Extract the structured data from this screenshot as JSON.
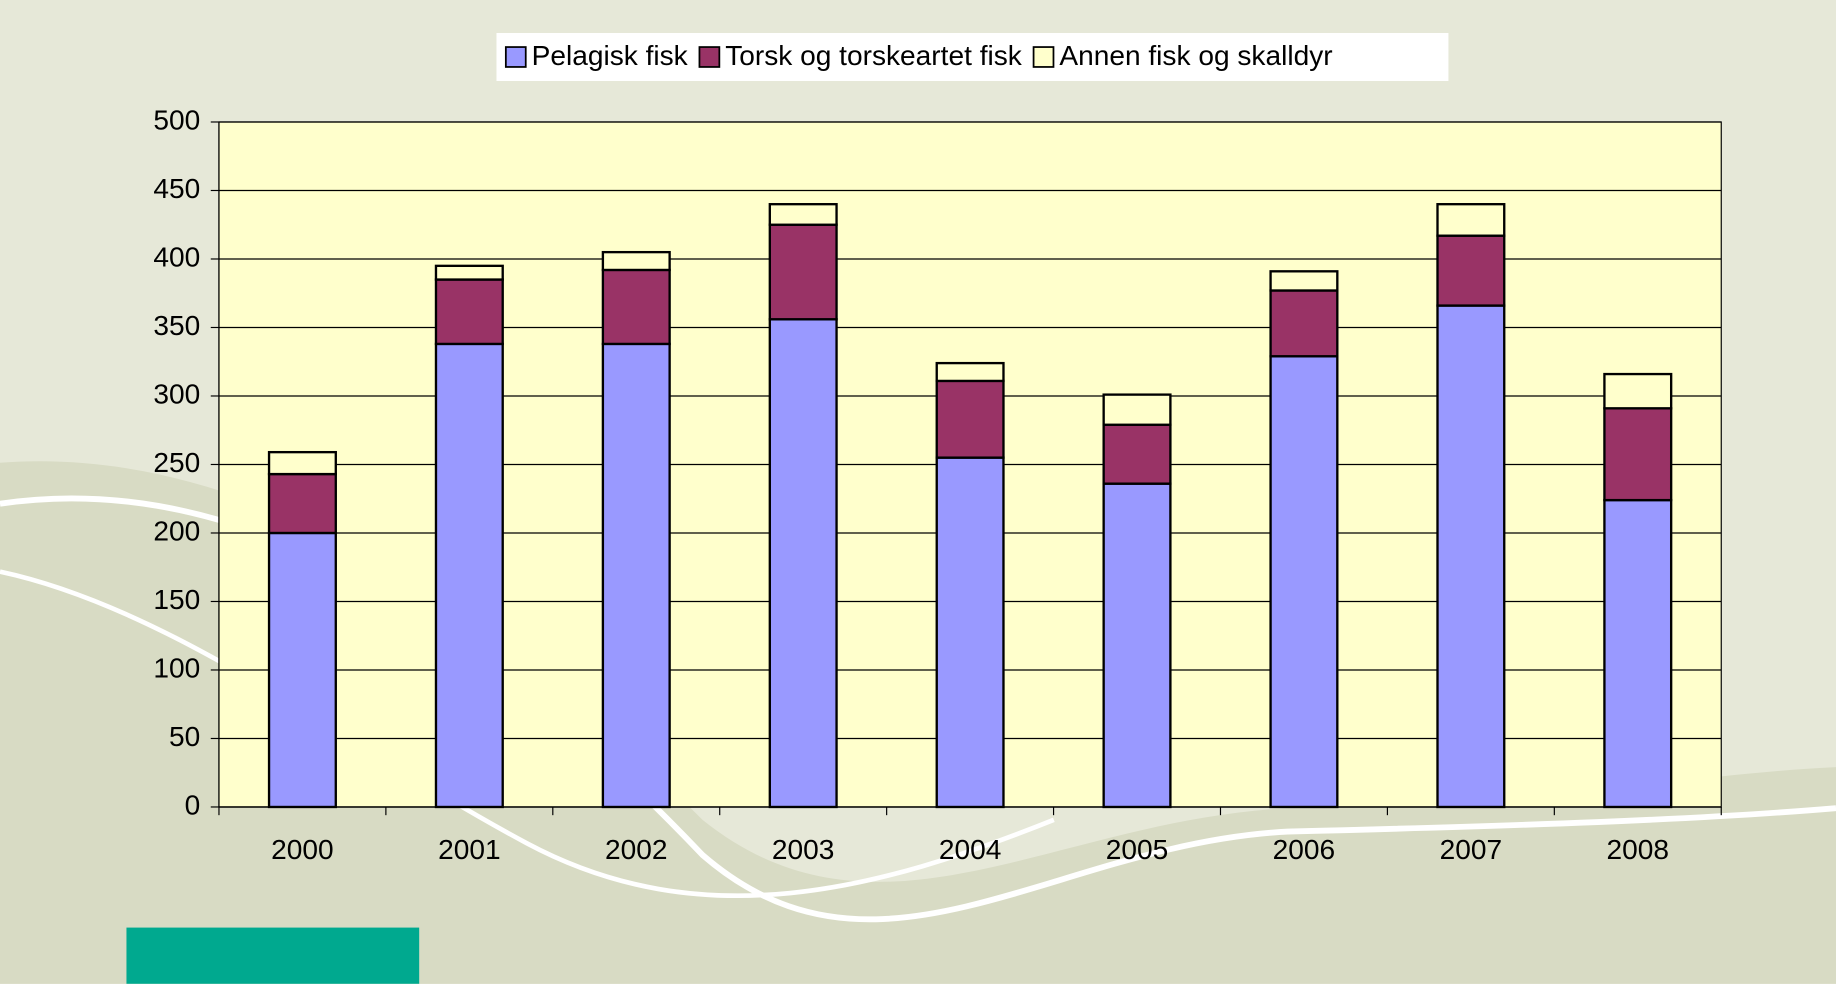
{
  "chart_data": {
    "type": "stacked_bar",
    "categories": [
      "2000",
      "2001",
      "2002",
      "2003",
      "2004",
      "2005",
      "2006",
      "2007",
      "2008"
    ],
    "series": [
      {
        "name": "Pelagisk fisk",
        "color": "#9999ff",
        "values": [
          200,
          338,
          338,
          356,
          255,
          236,
          329,
          366,
          224
        ]
      },
      {
        "name": "Torsk og torskeartet fisk",
        "color": "#993366",
        "values": [
          43,
          47,
          54,
          69,
          56,
          43,
          48,
          51,
          67
        ]
      },
      {
        "name": "Annen fisk og skalldyr",
        "color": "#ffffcc",
        "values": [
          16,
          10,
          13,
          15,
          13,
          22,
          14,
          23,
          25
        ]
      }
    ],
    "ylim": [
      0,
      500
    ],
    "yticks": [
      0,
      50,
      100,
      150,
      200,
      250,
      300,
      350,
      400,
      450,
      500
    ],
    "grid": true,
    "legend": "top",
    "plot_background": "#ffffcc"
  }
}
